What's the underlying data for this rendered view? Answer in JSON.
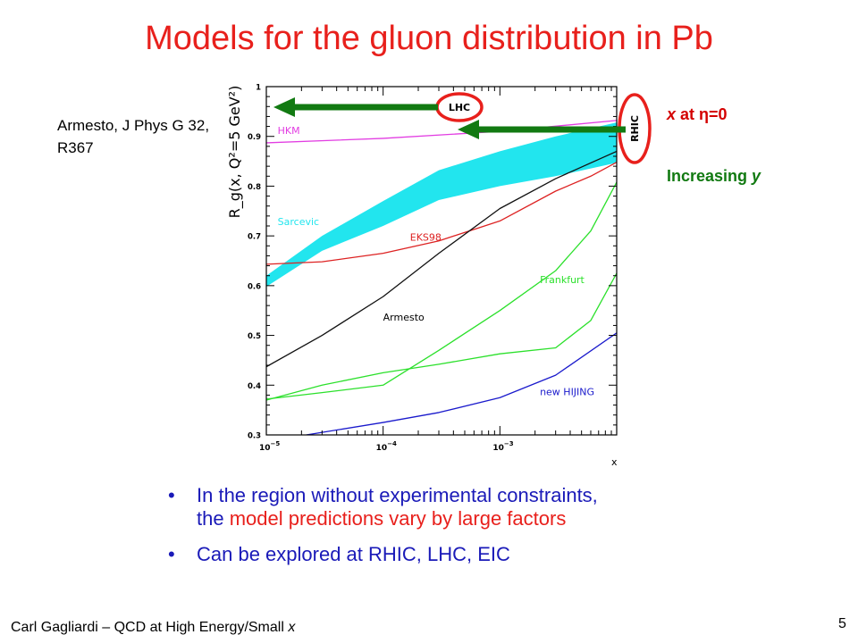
{
  "title": "Models for the gluon distribution in Pb",
  "citation": "Armesto, J Phys G 32, R367",
  "annotations": {
    "x_eta_prefix": "x",
    "x_eta_middle": " at ",
    "x_eta_eta": "η",
    "x_eta_suffix": "=0",
    "increasing_prefix": "Increasing ",
    "increasing_var": "y",
    "lhc_label": "LHC",
    "rhic_label": "RHIC",
    "arrow_color": "#127a12",
    "circle_color": "#e8201c"
  },
  "bullets": {
    "b1_line1": "In the region without experimental constraints,",
    "b1_line2_pre": "the ",
    "b1_line2_red": "model predictions vary by large factors",
    "b2": "Can be explored at RHIC, LHC, EIC",
    "bullet_char": "•"
  },
  "footer": {
    "text_main": "Carl Gagliardi – QCD at High Energy/Small ",
    "text_italic": "x",
    "page_number": "5"
  },
  "chart_data": {
    "type": "line",
    "xscale": "log",
    "xlim": [
      1e-05,
      0.01
    ],
    "ylim": [
      0.3,
      1.0
    ],
    "xlabel": "x",
    "ylabel": "R_g(x, Q²=5 GeV²)",
    "x_ticks": [
      {
        "value": 1e-05,
        "base": "10",
        "exp": "−5"
      },
      {
        "value": 0.0001,
        "base": "10",
        "exp": "−4"
      },
      {
        "value": 0.001,
        "base": "10",
        "exp": "−3"
      }
    ],
    "y_ticks": [
      "0.3",
      "0.4",
      "0.5",
      "0.6",
      "0.7",
      "0.8",
      "0.9",
      "1"
    ],
    "series": [
      {
        "name": "HKM",
        "color": "#e23de2",
        "label_at": [
          1.25e-05,
          0.905
        ],
        "x": [
          1e-05,
          0.0001,
          0.001,
          0.01
        ],
        "y": [
          0.887,
          0.896,
          0.91,
          0.932
        ]
      },
      {
        "name": "EKS98",
        "color": "#dd2222",
        "label_at": [
          0.00017,
          0.69
        ],
        "x": [
          1e-05,
          3e-05,
          0.0001,
          0.0003,
          0.001,
          0.003,
          0.006,
          0.01
        ],
        "y": [
          0.643,
          0.648,
          0.665,
          0.69,
          0.73,
          0.79,
          0.82,
          0.848
        ]
      },
      {
        "name": "Armesto",
        "color": "#111111",
        "label_at": [
          0.0001,
          0.53
        ],
        "x": [
          1e-05,
          3e-05,
          0.0001,
          0.0003,
          0.001,
          0.003,
          0.01
        ],
        "y": [
          0.437,
          0.5,
          0.578,
          0.665,
          0.755,
          0.815,
          0.87
        ]
      },
      {
        "name": "Frankfurt",
        "color": "#2be02b",
        "label_at": [
          0.0022,
          0.605
        ],
        "x": [
          1e-05,
          3e-05,
          0.0001,
          0.0003,
          0.001,
          0.003,
          0.006,
          0.01
        ],
        "y": [
          0.372,
          0.385,
          0.4,
          0.47,
          0.55,
          0.63,
          0.71,
          0.808
        ]
      },
      {
        "name": "Frankfurt (lower)",
        "color": "#2be02b",
        "x": [
          1e-05,
          3e-05,
          0.0001,
          0.0003,
          0.001,
          0.003,
          0.006,
          0.01
        ],
        "y": [
          0.37,
          0.4,
          0.425,
          0.442,
          0.463,
          0.475,
          0.53,
          0.625
        ]
      },
      {
        "name": "new HIJING",
        "color": "#1a1acc",
        "label_at": [
          0.0022,
          0.38
        ],
        "x": [
          2.2e-05,
          0.0001,
          0.0003,
          0.001,
          0.003,
          0.01
        ],
        "y": [
          0.3,
          0.325,
          0.345,
          0.375,
          0.42,
          0.505
        ]
      }
    ],
    "bands": [
      {
        "name": "Sarcevic",
        "color": "#22e5ee",
        "label_at": [
          1.25e-05,
          0.722
        ],
        "x": [
          1e-05,
          3e-05,
          0.0001,
          0.0003,
          0.001,
          0.003,
          0.01
        ],
        "upper": [
          0.62,
          0.7,
          0.77,
          0.832,
          0.87,
          0.9,
          0.928
        ],
        "lower": [
          0.598,
          0.67,
          0.72,
          0.772,
          0.8,
          0.82,
          0.847
        ]
      }
    ]
  }
}
